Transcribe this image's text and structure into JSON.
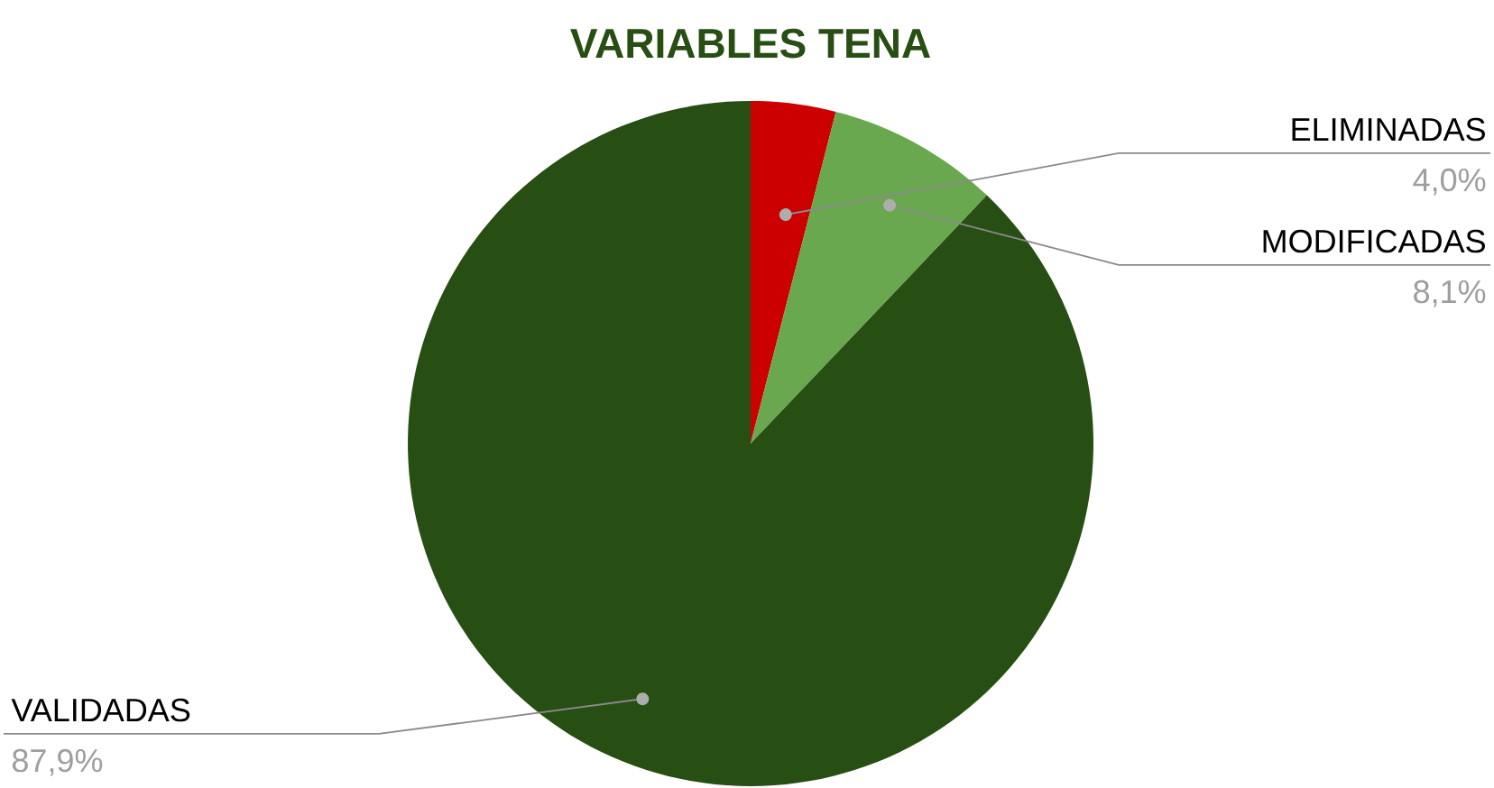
{
  "chart_data": {
    "type": "pie",
    "title": "VARIABLES TENA",
    "categories": [
      "ELIMINADAS",
      "MODIFICADAS",
      "VALIDADAS"
    ],
    "values": [
      4.0,
      8.1,
      87.9
    ],
    "value_labels": [
      "4,0%",
      "8,1%",
      "87,9%"
    ],
    "colors": [
      "#cc0000",
      "#6aa84f",
      "#274e13"
    ]
  }
}
